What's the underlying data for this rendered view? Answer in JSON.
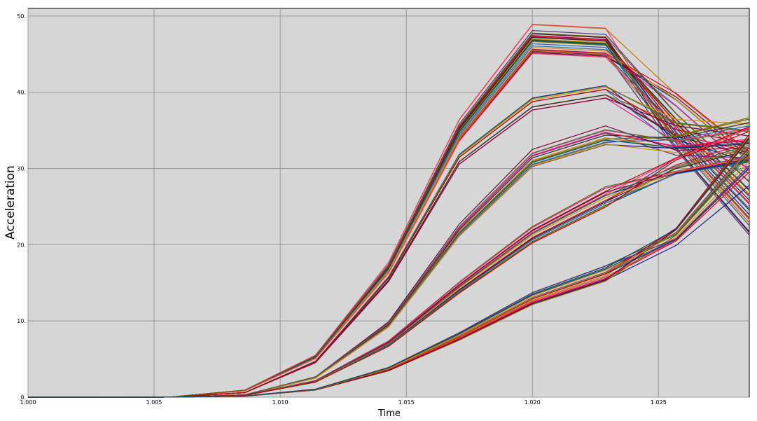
{
  "chart_data": {
    "type": "line",
    "title": "",
    "xlabel": "Time",
    "ylabel": "Acceleration",
    "xlim": [
      1.0,
      1.0286
    ],
    "ylim": [
      0,
      51
    ],
    "grid": true,
    "legend": "none",
    "background_color": "#d6d6d6",
    "grid_color": "#9a9a9a",
    "x_ticks": [
      1.0,
      1.005,
      1.01,
      1.015,
      1.02,
      1.025
    ],
    "x_tick_labels": [
      "1.000",
      "1.005",
      "1.010",
      "1.015",
      "1.020",
      "1.025"
    ],
    "y_ticks": [
      0,
      10,
      20,
      30,
      40,
      50
    ],
    "y_tick_labels": [
      "0.",
      "10.",
      "20.",
      "30.",
      "40.",
      "50."
    ],
    "x": [
      1.0,
      1.0029,
      1.0057,
      1.0086,
      1.0114,
      1.0143,
      1.0171,
      1.02,
      1.0229,
      1.0257,
      1.0286
    ],
    "palette": [
      "#1a1a8c",
      "#cc0033",
      "#8b6d00",
      "#2b2b2b",
      "#e61a8c",
      "#2a6ab0",
      "#7a0040",
      "#d98c00",
      "#3d6b3d",
      "#b30000",
      "#5a2d82",
      "#c47a00",
      "#004d66",
      "#ff3366",
      "#666600"
    ],
    "series_groups": [
      {
        "y": [
          0,
          0,
          0.03,
          0.9,
          5.3,
          17.0,
          35.0,
          47.0,
          46.5,
          36.0,
          26.5
        ],
        "count": 30,
        "spread": 0.045,
        "tail_spread": 0.22
      },
      {
        "y": [
          0,
          0,
          0.02,
          0.6,
          4.6,
          15.4,
          31.0,
          38.2,
          39.8,
          34.5,
          32.2
        ],
        "count": 10,
        "spread": 0.03,
        "tail_spread": 0.12
      },
      {
        "y": [
          0,
          0,
          0.01,
          0.3,
          2.6,
          9.6,
          22.0,
          31.5,
          34.5,
          33.0,
          34.0
        ],
        "count": 14,
        "spread": 0.04,
        "tail_spread": 0.08
      },
      {
        "y": [
          0,
          0,
          0.01,
          0.25,
          2.1,
          7.1,
          14.5,
          21.5,
          26.5,
          30.5,
          33.5
        ],
        "count": 16,
        "spread": 0.06,
        "tail_spread": 0.08
      },
      {
        "y": [
          0,
          0,
          0.005,
          0.15,
          1.0,
          3.7,
          8.0,
          13.0,
          16.3,
          21.0,
          31.0
        ],
        "count": 18,
        "spread": 0.07,
        "tail_spread": 0.12
      }
    ]
  }
}
